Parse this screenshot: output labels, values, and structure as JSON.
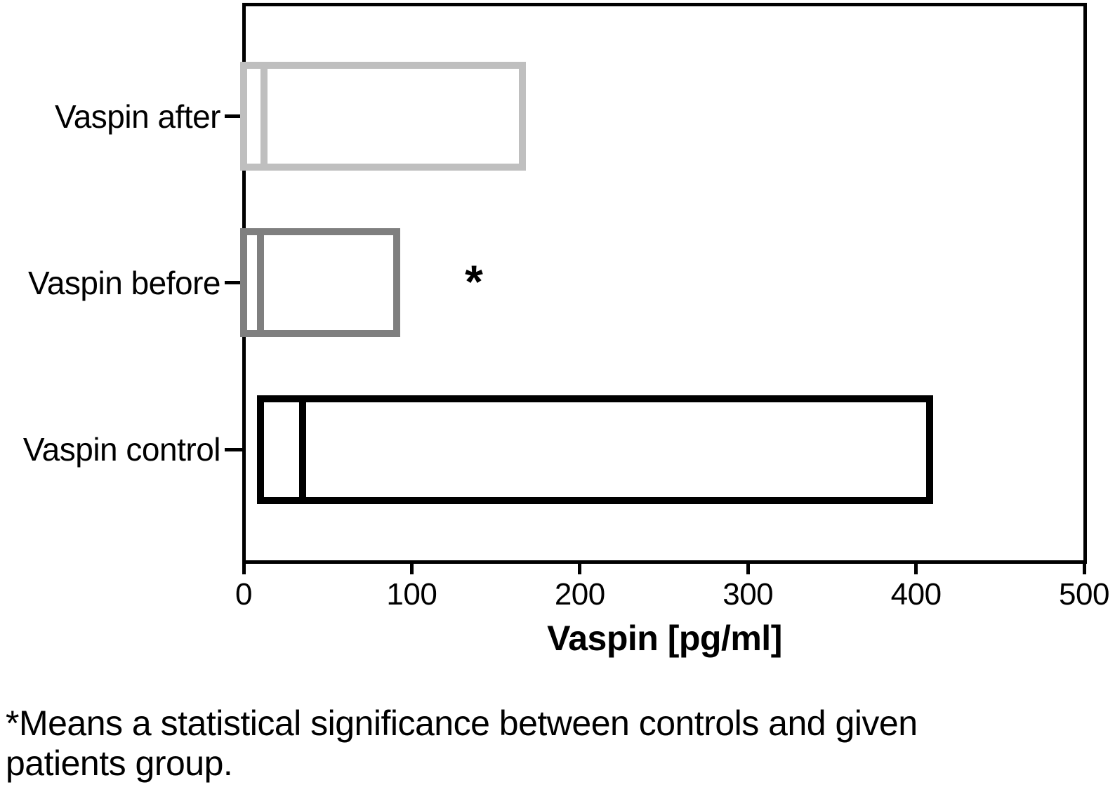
{
  "figure": {
    "footnote_lines": [
      "*Means a statistical significance between controls and given",
      "patients group."
    ]
  },
  "chart_data": {
    "type": "boxplot",
    "orientation": "horizontal",
    "title": "",
    "xlabel": "Vaspin [pg/ml]",
    "ylabel": "",
    "xlim": [
      0,
      500
    ],
    "xticks": [
      0,
      100,
      200,
      300,
      400,
      500
    ],
    "categories": [
      "Vaspin after",
      "Vaspin before",
      "Vaspin control"
    ],
    "series": [
      {
        "name": "Vaspin after",
        "box_low": 0,
        "median": 12,
        "box_high": 166,
        "color": "#bfbfbf"
      },
      {
        "name": "Vaspin before",
        "box_low": 0,
        "median": 10,
        "box_high": 91,
        "color": "#7f7f7f"
      },
      {
        "name": "Vaspin control",
        "box_low": 10,
        "median": 35,
        "box_high": 408,
        "color": "#000000"
      }
    ],
    "annotations": [
      {
        "text": "*",
        "x": 137,
        "category": "Vaspin before"
      }
    ],
    "legend": null,
    "grid": false,
    "units": "pg/ml"
  },
  "colors": {
    "background": "#ffffff",
    "axis": "#000000",
    "text": "#000000"
  }
}
